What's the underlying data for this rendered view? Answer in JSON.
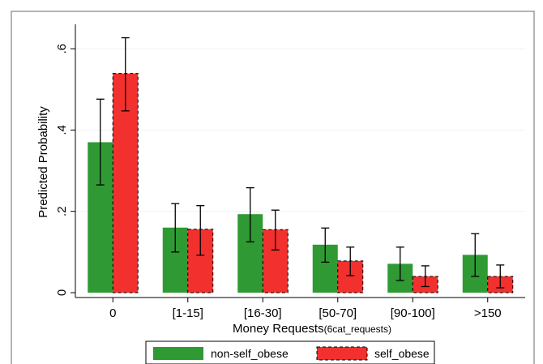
{
  "chart_data": {
    "type": "bar",
    "xlabel": "Money Requests",
    "xlabel_suffix": "(6cat_requests)",
    "ylabel": "Predicted Probability",
    "ylim": [
      0,
      0.66
    ],
    "yticks": [
      0,
      0.2,
      0.4,
      0.6
    ],
    "ytick_labels": [
      "0",
      ".2",
      ".4",
      ".6"
    ],
    "grid": "horizontal",
    "legend_position": "bottom",
    "categories": [
      "0",
      "[1-15]",
      "[16-30]",
      "[50-70]",
      "[90-100]",
      ">150"
    ],
    "series": [
      {
        "name": "non-self_obese",
        "color": "#2f9a33",
        "values": [
          0.37,
          0.16,
          0.193,
          0.118,
          0.071,
          0.093
        ],
        "ci_low": [
          0.265,
          0.1,
          0.125,
          0.075,
          0.03,
          0.04
        ],
        "ci_high": [
          0.476,
          0.219,
          0.258,
          0.159,
          0.112,
          0.145
        ]
      },
      {
        "name": "self_obese",
        "color": "#f2302e",
        "values": [
          0.539,
          0.156,
          0.155,
          0.078,
          0.04,
          0.04
        ],
        "ci_low": [
          0.447,
          0.092,
          0.105,
          0.042,
          0.015,
          0.012
        ],
        "ci_high": [
          0.627,
          0.214,
          0.203,
          0.112,
          0.066,
          0.068
        ]
      }
    ]
  }
}
